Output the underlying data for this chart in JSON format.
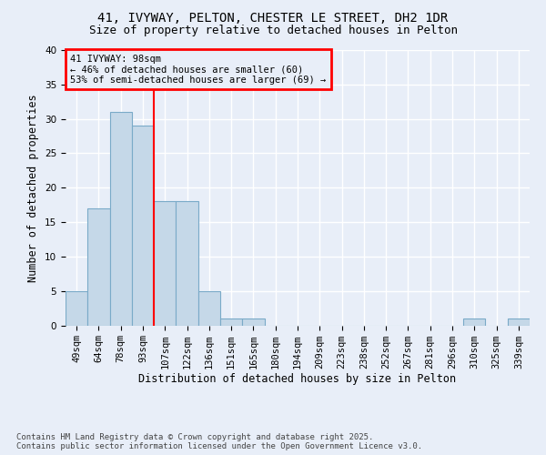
{
  "title1": "41, IVYWAY, PELTON, CHESTER LE STREET, DH2 1DR",
  "title2": "Size of property relative to detached houses in Pelton",
  "xlabel": "Distribution of detached houses by size in Pelton",
  "ylabel": "Number of detached properties",
  "footer": "Contains HM Land Registry data © Crown copyright and database right 2025.\nContains public sector information licensed under the Open Government Licence v3.0.",
  "bin_labels": [
    "49sqm",
    "64sqm",
    "78sqm",
    "93sqm",
    "107sqm",
    "122sqm",
    "136sqm",
    "151sqm",
    "165sqm",
    "180sqm",
    "194sqm",
    "209sqm",
    "223sqm",
    "238sqm",
    "252sqm",
    "267sqm",
    "281sqm",
    "296sqm",
    "310sqm",
    "325sqm",
    "339sqm"
  ],
  "bar_values": [
    5,
    17,
    31,
    29,
    18,
    18,
    5,
    1,
    1,
    0,
    0,
    0,
    0,
    0,
    0,
    0,
    0,
    0,
    1,
    0,
    1
  ],
  "bar_color": "#c5d8e8",
  "bar_edgecolor": "#7aaac8",
  "vline_x": 3.5,
  "vline_color": "red",
  "annotation_text": "41 IVYWAY: 98sqm\n← 46% of detached houses are smaller (60)\n53% of semi-detached houses are larger (69) →",
  "ylim": [
    0,
    40
  ],
  "yticks": [
    0,
    5,
    10,
    15,
    20,
    25,
    30,
    35,
    40
  ],
  "background_color": "#e8eef8",
  "grid_color": "white",
  "title_fontsize": 10,
  "subtitle_fontsize": 9,
  "label_fontsize": 8.5,
  "tick_fontsize": 7.5,
  "footer_fontsize": 6.5
}
